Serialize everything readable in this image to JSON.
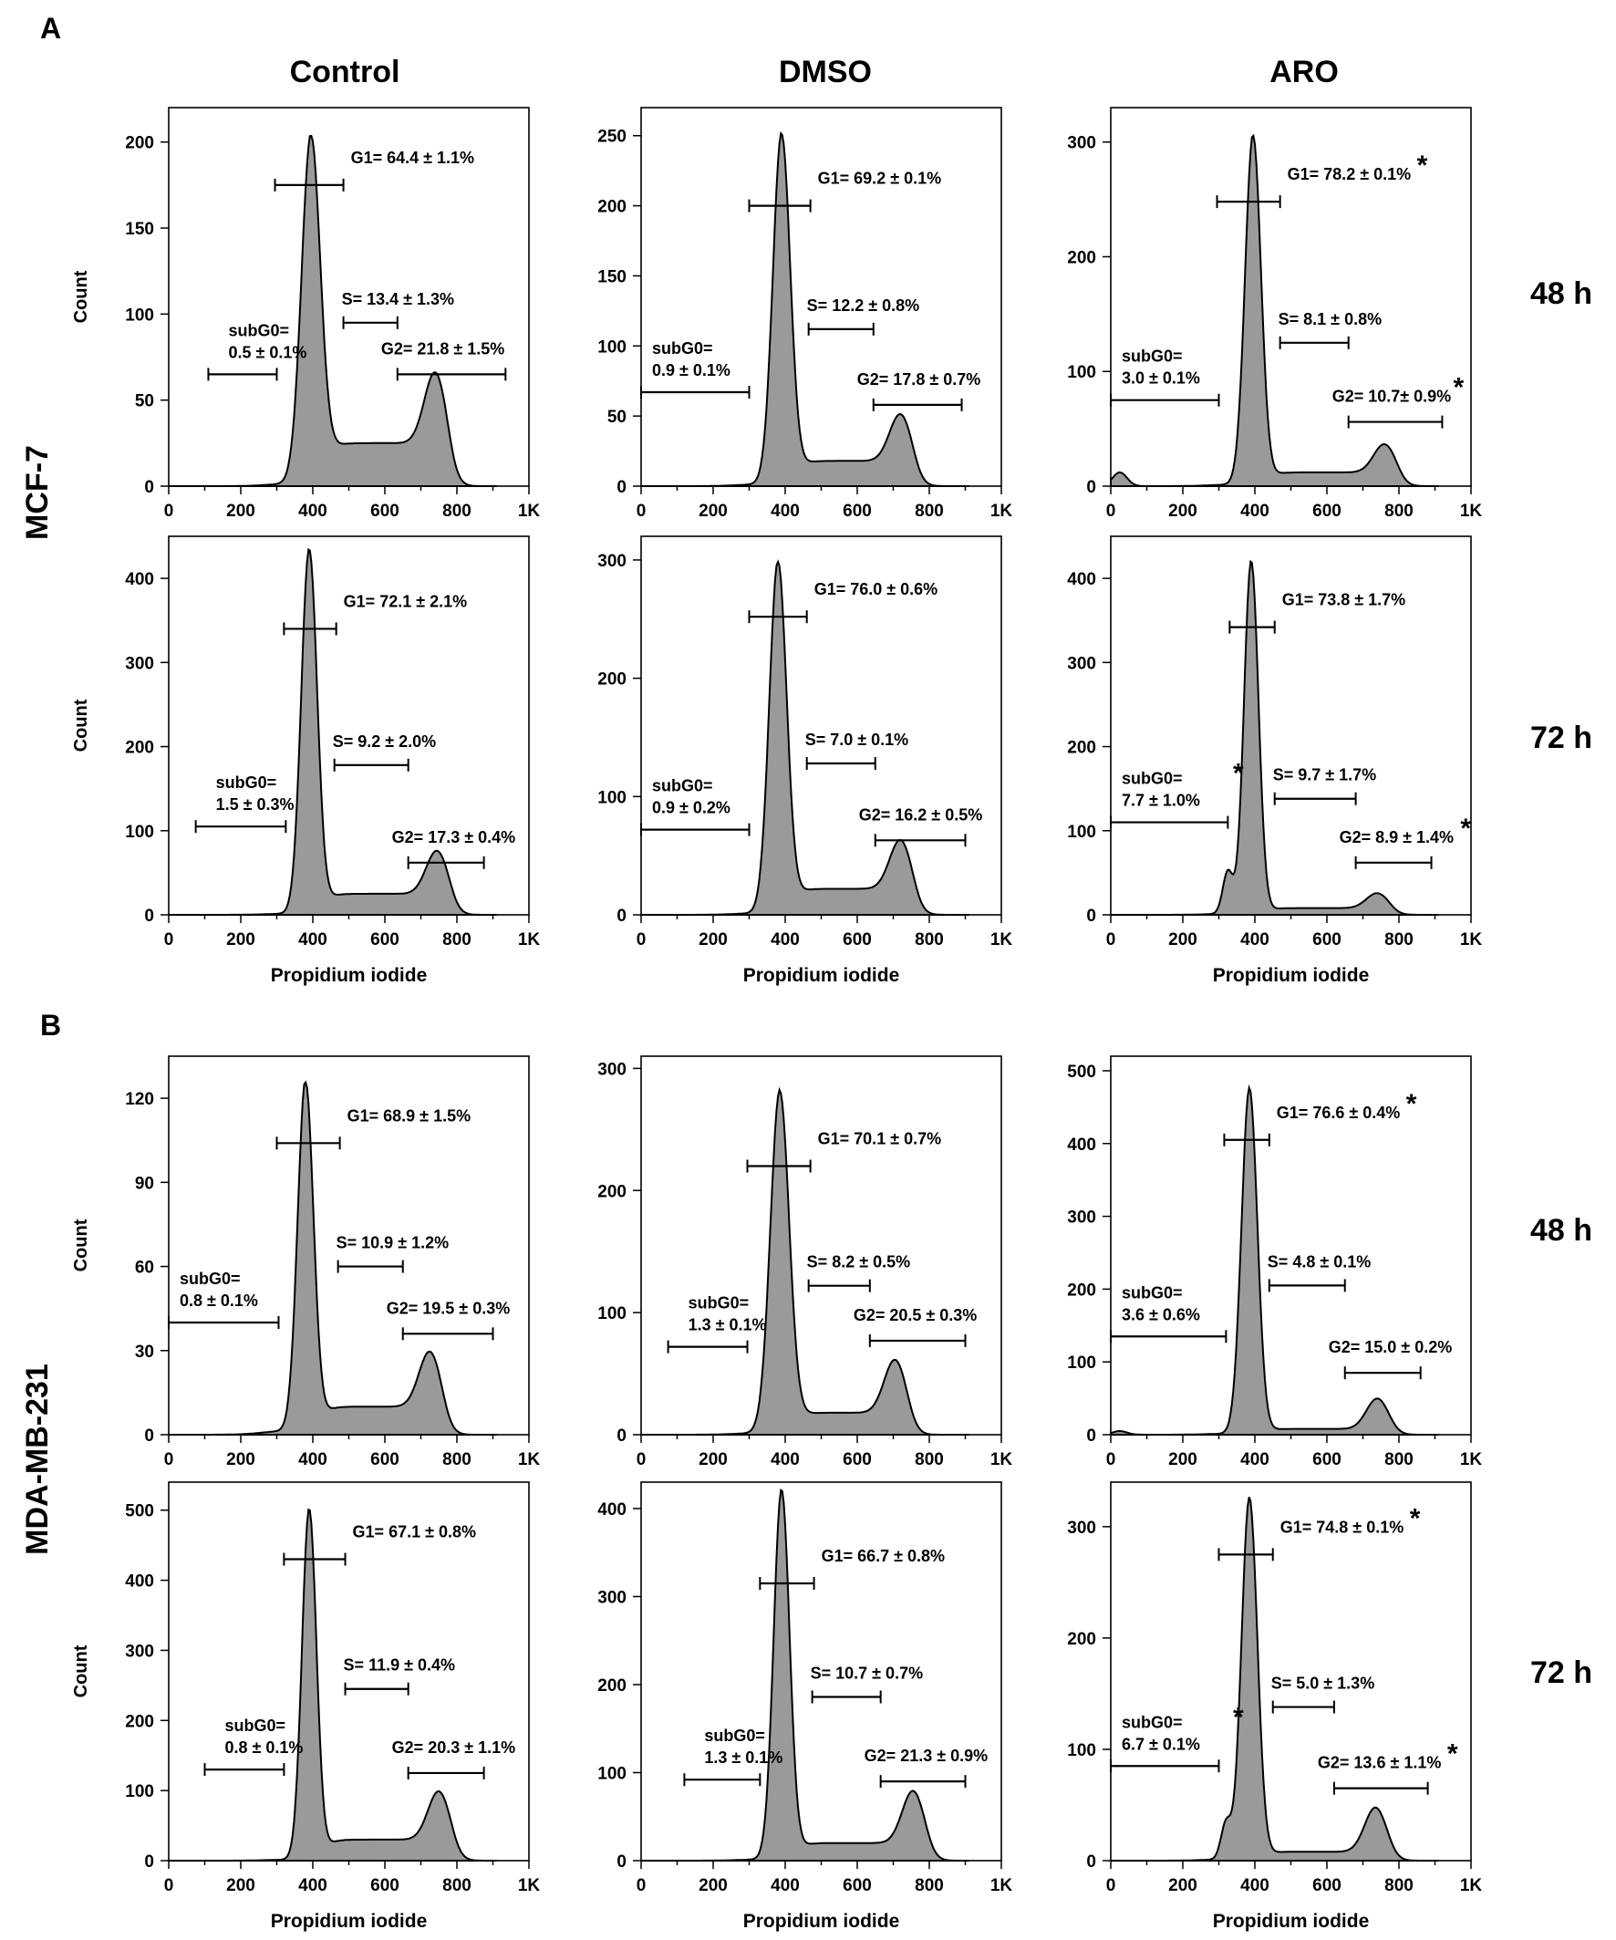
{
  "figure": {
    "panel_labels": [
      "A",
      "B"
    ],
    "column_titles": [
      "Control",
      "DMSO",
      "ARO"
    ],
    "row_labels": [
      "MCF-7",
      "MDA-MB-231"
    ],
    "time_labels": [
      "48 h",
      "72 h",
      "48 h",
      "72 h"
    ],
    "y_axis_label": "Count",
    "x_axis_label": "Propidium iodide",
    "x_tick_labels": [
      "0",
      "200",
      "400",
      "600",
      "800",
      "1K"
    ],
    "significance_marker": "*"
  },
  "colors": {
    "fill": "#9a9a9a",
    "stroke": "#000000"
  },
  "chart_data": [
    {
      "type": "area",
      "cell_line": "MCF-7",
      "treatment": "Control",
      "time": "48 h",
      "title": "Control",
      "xlabel": "",
      "ylabel": "Count",
      "xlim": [
        0,
        1000
      ],
      "ylim": [
        0,
        220
      ],
      "yticks": [
        0,
        50,
        100,
        150,
        200
      ],
      "peaks": {
        "g1_pos": 395,
        "g1_width": 26,
        "g1_height": 202,
        "g2_pos": 740,
        "g2_height": 42,
        "sub_height": 0,
        "s_level": 25
      },
      "gates": [
        {
          "id": "subG0",
          "line1": "subG0=",
          "line2": "0.5 ± 0.1%",
          "x": [
            110,
            300
          ],
          "y": 65,
          "star": false
        },
        {
          "id": "G1",
          "line1": "G1= 64.4 ± 1.1%",
          "x": [
            295,
            485
          ],
          "y": 175,
          "star": false,
          "vbars": true
        },
        {
          "id": "S",
          "line1": "S= 13.4 ± 1.3%",
          "x": [
            485,
            635
          ],
          "y": 95,
          "star": false
        },
        {
          "id": "G2",
          "line1": "G2= 21.8 ± 1.5%",
          "x": [
            635,
            935
          ],
          "y": 65,
          "star": false
        }
      ]
    },
    {
      "type": "area",
      "cell_line": "MCF-7",
      "treatment": "DMSO",
      "time": "48 h",
      "title": "DMSO",
      "xlabel": "",
      "ylabel": "",
      "xlim": [
        0,
        1000
      ],
      "ylim": [
        0,
        270
      ],
      "yticks": [
        0,
        50,
        100,
        150,
        200,
        250
      ],
      "peaks": {
        "g1_pos": 390,
        "g1_width": 24,
        "g1_height": 250,
        "g2_pos": 720,
        "g2_height": 34,
        "sub_height": 0,
        "s_level": 18
      },
      "gates": [
        {
          "id": "subG0",
          "line1": "subG0=",
          "line2": "0.9 ± 0.1%",
          "x": [
            0,
            300
          ],
          "y": 67,
          "star": false
        },
        {
          "id": "G1",
          "line1": "G1= 69.2 ± 0.1%",
          "x": [
            300,
            470
          ],
          "y": 200,
          "star": false,
          "vbars": true
        },
        {
          "id": "S",
          "line1": "S= 12.2 ± 0.8%",
          "x": [
            465,
            645
          ],
          "y": 112,
          "star": false
        },
        {
          "id": "G2",
          "line1": "G2= 17.8 ± 0.7%",
          "x": [
            645,
            890
          ],
          "y": 58,
          "star": false
        }
      ]
    },
    {
      "type": "area",
      "cell_line": "MCF-7",
      "treatment": "ARO",
      "time": "48 h",
      "title": "ARO",
      "xlabel": "",
      "ylabel": "",
      "xlim": [
        0,
        1000
      ],
      "ylim": [
        0,
        330
      ],
      "yticks": [
        0,
        100,
        200,
        300
      ],
      "peaks": {
        "g1_pos": 395,
        "g1_width": 22,
        "g1_height": 305,
        "g2_pos": 760,
        "g2_height": 25,
        "sub_height": 12,
        "s_level": 12
      },
      "gates": [
        {
          "id": "subG0",
          "line1": "subG0=",
          "line2": "3.0 ± 0.1%",
          "x": [
            0,
            300
          ],
          "y": 75,
          "star": false
        },
        {
          "id": "G1",
          "line1": "G1= 78.2 ± 0.1%",
          "x": [
            295,
            470
          ],
          "y": 248,
          "star": true,
          "vbars": true
        },
        {
          "id": "S",
          "line1": "S= 8.1 ± 0.8%",
          "x": [
            470,
            660
          ],
          "y": 125,
          "star": false
        },
        {
          "id": "G2",
          "line1": "G2= 10.7± 0.9%",
          "x": [
            660,
            920
          ],
          "y": 56,
          "star": true
        }
      ]
    },
    {
      "type": "area",
      "cell_line": "MCF-7",
      "treatment": "Control",
      "time": "72 h",
      "title": "",
      "xlabel": "Propidium iodide",
      "ylabel": "Count",
      "xlim": [
        0,
        1000
      ],
      "ylim": [
        0,
        450
      ],
      "yticks": [
        0,
        100,
        200,
        300,
        400
      ],
      "peaks": {
        "g1_pos": 390,
        "g1_width": 22,
        "g1_height": 433,
        "g2_pos": 745,
        "g2_height": 52,
        "sub_height": 0,
        "s_level": 25
      },
      "gates": [
        {
          "id": "subG0",
          "line1": "subG0=",
          "line2": "1.5 ± 0.3%",
          "x": [
            75,
            325
          ],
          "y": 105,
          "star": false
        },
        {
          "id": "G1",
          "line1": "G1= 72.1 ± 2.1%",
          "x": [
            320,
            465
          ],
          "y": 340,
          "star": false,
          "vbars": true
        },
        {
          "id": "S",
          "line1": "S= 9.2 ± 2.0%",
          "x": [
            460,
            665
          ],
          "y": 178,
          "star": false
        },
        {
          "id": "G2",
          "line1": "G2= 17.3 ± 0.4%",
          "x": [
            665,
            875
          ],
          "y": 62,
          "star": false
        }
      ]
    },
    {
      "type": "area",
      "cell_line": "MCF-7",
      "treatment": "DMSO",
      "time": "72 h",
      "title": "",
      "xlabel": "Propidium iodide",
      "ylabel": "",
      "xlim": [
        0,
        1000
      ],
      "ylim": [
        0,
        320
      ],
      "yticks": [
        0,
        100,
        200,
        300
      ],
      "peaks": {
        "g1_pos": 380,
        "g1_width": 24,
        "g1_height": 297,
        "g2_pos": 720,
        "g2_height": 42,
        "sub_height": 0,
        "s_level": 22
      },
      "gates": [
        {
          "id": "subG0",
          "line1": "subG0=",
          "line2": "0.9 ± 0.2%",
          "x": [
            0,
            300
          ],
          "y": 72,
          "star": false
        },
        {
          "id": "G1",
          "line1": "G1= 76.0 ± 0.6%",
          "x": [
            300,
            460
          ],
          "y": 252,
          "star": false,
          "vbars": true
        },
        {
          "id": "S",
          "line1": "S= 7.0 ± 0.1%",
          "x": [
            460,
            650
          ],
          "y": 128,
          "star": false
        },
        {
          "id": "G2",
          "line1": "G2= 16.2 ± 0.5%",
          "x": [
            650,
            900
          ],
          "y": 63,
          "star": false
        }
      ]
    },
    {
      "type": "area",
      "cell_line": "MCF-7",
      "treatment": "ARO",
      "time": "72 h",
      "title": "",
      "xlabel": "Propidium iodide",
      "ylabel": "",
      "xlim": [
        0,
        1000
      ],
      "ylim": [
        0,
        450
      ],
      "yticks": [
        0,
        100,
        200,
        300,
        400
      ],
      "peaks": {
        "g1_pos": 390,
        "g1_width": 20,
        "g1_height": 420,
        "g2_pos": 740,
        "g2_height": 18,
        "sub_height": 50,
        "s_level": 8
      },
      "gates": [
        {
          "id": "subG0",
          "line1": "subG0=",
          "line2": "7.7 ± 1.0%",
          "x": [
            0,
            325
          ],
          "y": 110,
          "star": true
        },
        {
          "id": "G1",
          "line1": "G1= 73.8 ± 1.7%",
          "x": [
            330,
            455
          ],
          "y": 342,
          "star": false,
          "vbars": true
        },
        {
          "id": "S",
          "line1": "S= 9.7 ± 1.7%",
          "x": [
            455,
            680
          ],
          "y": 138,
          "star": false
        },
        {
          "id": "G2",
          "line1": "G2= 8.9 ± 1.4%",
          "x": [
            680,
            890
          ],
          "y": 62,
          "star": true
        }
      ]
    },
    {
      "type": "area",
      "cell_line": "MDA-MB-231",
      "treatment": "Control",
      "time": "48 h",
      "title": "",
      "xlabel": "",
      "ylabel": "Count",
      "xlim": [
        0,
        1000
      ],
      "ylim": [
        0,
        135
      ],
      "yticks": [
        0,
        30,
        60,
        90,
        120
      ],
      "peaks": {
        "g1_pos": 380,
        "g1_width": 22,
        "g1_height": 125,
        "g2_pos": 725,
        "g2_height": 20,
        "sub_height": 0,
        "s_level": 10
      },
      "gates": [
        {
          "id": "subG0",
          "line1": "subG0=",
          "line2": "0.8 ± 0.1%",
          "x": [
            0,
            305
          ],
          "y": 40,
          "star": false
        },
        {
          "id": "G1",
          "line1": "G1= 68.9 ± 1.5%",
          "x": [
            300,
            475
          ],
          "y": 104,
          "star": false,
          "vbars": true
        },
        {
          "id": "S",
          "line1": "S= 10.9 ± 1.2%",
          "x": [
            470,
            650
          ],
          "y": 60,
          "star": false
        },
        {
          "id": "G2",
          "line1": "G2= 19.5 ± 0.3%",
          "x": [
            650,
            900
          ],
          "y": 36,
          "star": false
        }
      ]
    },
    {
      "type": "area",
      "cell_line": "MDA-MB-231",
      "treatment": "DMSO",
      "time": "48 h",
      "title": "",
      "xlabel": "",
      "ylabel": "",
      "xlim": [
        0,
        1000
      ],
      "ylim": [
        0,
        310
      ],
      "yticks": [
        0,
        100,
        200,
        300
      ],
      "peaks": {
        "g1_pos": 385,
        "g1_width": 26,
        "g1_height": 280,
        "g2_pos": 705,
        "g2_height": 44,
        "sub_height": 0,
        "s_level": 18
      },
      "gates": [
        {
          "id": "subG0",
          "line1": "subG0=",
          "line2": "1.3 ± 0.1%",
          "x": [
            75,
            295
          ],
          "y": 72,
          "star": false
        },
        {
          "id": "G1",
          "line1": "G1= 70.1 ± 0.7%",
          "x": [
            295,
            470
          ],
          "y": 220,
          "star": false,
          "vbars": true
        },
        {
          "id": "S",
          "line1": "S= 8.2 ± 0.5%",
          "x": [
            465,
            635
          ],
          "y": 122,
          "star": false
        },
        {
          "id": "G2",
          "line1": "G2= 20.5 ± 0.3%",
          "x": [
            635,
            900
          ],
          "y": 77,
          "star": false
        }
      ]
    },
    {
      "type": "area",
      "cell_line": "MDA-MB-231",
      "treatment": "ARO",
      "time": "48 h",
      "title": "",
      "xlabel": "",
      "ylabel": "",
      "xlim": [
        0,
        1000
      ],
      "ylim": [
        0,
        520
      ],
      "yticks": [
        0,
        100,
        200,
        300,
        400,
        500
      ],
      "peaks": {
        "g1_pos": 385,
        "g1_width": 22,
        "g1_height": 475,
        "g2_pos": 740,
        "g2_height": 42,
        "sub_height": 5,
        "s_level": 8
      },
      "gates": [
        {
          "id": "subG0",
          "line1": "subG0=",
          "line2": "3.6 ± 0.6%",
          "x": [
            0,
            320
          ],
          "y": 135,
          "star": false
        },
        {
          "id": "G1",
          "line1": "G1= 76.6 ± 0.4%",
          "x": [
            315,
            440
          ],
          "y": 405,
          "star": true,
          "vbars": true
        },
        {
          "id": "S",
          "line1": "S= 4.8 ± 0.1%",
          "x": [
            440,
            650
          ],
          "y": 205,
          "star": false
        },
        {
          "id": "G2",
          "line1": "G2= 15.0 ± 0.2%",
          "x": [
            650,
            860
          ],
          "y": 85,
          "star": false
        }
      ]
    },
    {
      "type": "area",
      "cell_line": "MDA-MB-231",
      "treatment": "Control",
      "time": "72 h",
      "title": "",
      "xlabel": "Propidium iodide",
      "ylabel": "Count",
      "xlim": [
        0,
        1000
      ],
      "ylim": [
        0,
        540
      ],
      "yticks": [
        0,
        100,
        200,
        300,
        400,
        500
      ],
      "peaks": {
        "g1_pos": 390,
        "g1_width": 20,
        "g1_height": 500,
        "g2_pos": 750,
        "g2_height": 70,
        "sub_height": 0,
        "s_level": 30
      },
      "gates": [
        {
          "id": "subG0",
          "line1": "subG0=",
          "line2": "0.8 ± 0.1%",
          "x": [
            100,
            320
          ],
          "y": 130,
          "star": false
        },
        {
          "id": "G1",
          "line1": "G1= 67.1 ± 0.8%",
          "x": [
            320,
            490
          ],
          "y": 430,
          "star": false,
          "vbars": true
        },
        {
          "id": "S",
          "line1": "S= 11.9 ± 0.4%",
          "x": [
            490,
            665
          ],
          "y": 245,
          "star": false
        },
        {
          "id": "G2",
          "line1": "G2= 20.3 ± 1.1%",
          "x": [
            665,
            875
          ],
          "y": 125,
          "star": false
        }
      ]
    },
    {
      "type": "area",
      "cell_line": "MDA-MB-231",
      "treatment": "DMSO",
      "time": "72 h",
      "title": "",
      "xlabel": "Propidium iodide",
      "ylabel": "",
      "xlim": [
        0,
        1000
      ],
      "ylim": [
        0,
        430
      ],
      "yticks": [
        0,
        100,
        200,
        300,
        400
      ],
      "peaks": {
        "g1_pos": 390,
        "g1_width": 22,
        "g1_height": 420,
        "g2_pos": 755,
        "g2_height": 60,
        "sub_height": 0,
        "s_level": 20
      },
      "gates": [
        {
          "id": "subG0",
          "line1": "subG0=",
          "line2": "1.3 ± 0.1%",
          "x": [
            120,
            330
          ],
          "y": 92,
          "star": false
        },
        {
          "id": "G1",
          "line1": "G1= 66.7 ± 0.8%",
          "x": [
            330,
            480
          ],
          "y": 315,
          "star": false,
          "vbars": true
        },
        {
          "id": "S",
          "line1": "S= 10.7 ± 0.7%",
          "x": [
            475,
            665
          ],
          "y": 186,
          "star": false
        },
        {
          "id": "G2",
          "line1": "G2= 21.3 ± 0.9%",
          "x": [
            665,
            900
          ],
          "y": 90,
          "star": false
        }
      ]
    },
    {
      "type": "area",
      "cell_line": "MDA-MB-231",
      "treatment": "ARO",
      "time": "72 h",
      "title": "",
      "xlabel": "Propidium iodide",
      "ylabel": "",
      "xlim": [
        0,
        1000
      ],
      "ylim": [
        0,
        340
      ],
      "yticks": [
        0,
        100,
        200,
        300
      ],
      "peaks": {
        "g1_pos": 385,
        "g1_width": 22,
        "g1_height": 325,
        "g2_pos": 735,
        "g2_height": 40,
        "sub_height": 32,
        "s_level": 8
      },
      "gates": [
        {
          "id": "subG0",
          "line1": "subG0=",
          "line2": "6.7 ± 0.1%",
          "x": [
            0,
            300
          ],
          "y": 85,
          "star": true
        },
        {
          "id": "G1",
          "line1": "G1= 74.8 ± 0.1%",
          "x": [
            300,
            450
          ],
          "y": 275,
          "star": true,
          "vbars": true
        },
        {
          "id": "S",
          "line1": "S= 5.0 ± 1.3%",
          "x": [
            450,
            620
          ],
          "y": 138,
          "star": false
        },
        {
          "id": "G2",
          "line1": "G2= 13.6 ± 1.1%",
          "x": [
            620,
            880
          ],
          "y": 65,
          "star": true
        }
      ]
    }
  ]
}
